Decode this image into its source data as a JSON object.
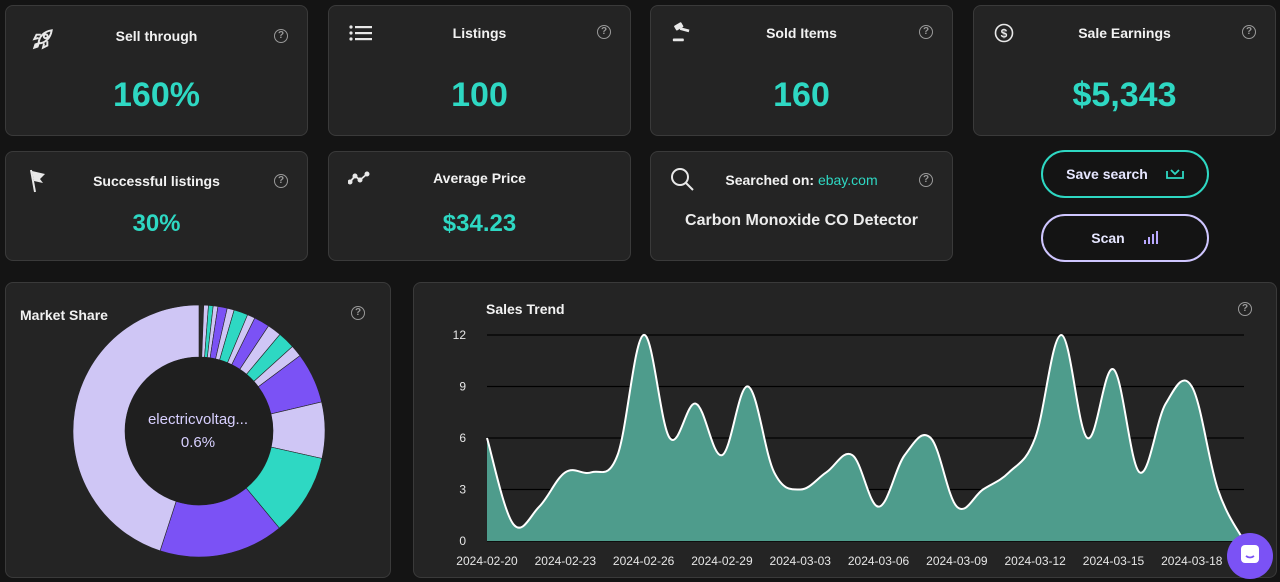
{
  "stats": {
    "sell_through": {
      "label": "Sell through",
      "value": "160%"
    },
    "listings": {
      "label": "Listings",
      "value": "100"
    },
    "sold_items": {
      "label": "Sold Items",
      "value": "160"
    },
    "sale_earnings": {
      "label": "Sale Earnings",
      "value": "$5,343"
    },
    "successful_listings": {
      "label": "Successful listings",
      "value": "30%"
    },
    "average_price": {
      "label": "Average Price",
      "value": "$34.23"
    }
  },
  "search": {
    "label": "Searched on:",
    "site": "ebay.com",
    "query": "Carbon Monoxide CO Detector"
  },
  "buttons": {
    "save": "Save search",
    "scan": "Scan"
  },
  "market_share": {
    "title": "Market Share",
    "center_name": "electricvoltag...",
    "center_value": "0.6%"
  },
  "colors": {
    "accent": "#2ed8c3",
    "purple": "#7b52f5",
    "lavender": "#cfc6f5",
    "card": "#242424"
  },
  "icons": [
    "rocket-icon",
    "list-icon",
    "gavel-icon",
    "dollar-icon",
    "flag-icon",
    "trend-icon",
    "search-icon",
    "help-icon",
    "download-icon",
    "signal-icon",
    "chat-icon"
  ],
  "chart_data": [
    {
      "type": "pie",
      "title": "Market Share",
      "slices": [
        {
          "value": 0.6,
          "color": "#2a2a2a"
        },
        {
          "value": 0.6,
          "color": "#cfc6f5"
        },
        {
          "value": 0.6,
          "color": "#2ed8c3"
        },
        {
          "value": 0.6,
          "color": "#cfc6f5"
        },
        {
          "value": 1.2,
          "color": "#7b52f5"
        },
        {
          "value": 0.9,
          "color": "#cfc6f5"
        },
        {
          "value": 1.8,
          "color": "#2ed8c3"
        },
        {
          "value": 1.0,
          "color": "#cfc6f5"
        },
        {
          "value": 2.0,
          "color": "#7b52f5"
        },
        {
          "value": 1.8,
          "color": "#cfc6f5"
        },
        {
          "value": 2.2,
          "color": "#2ed8c3"
        },
        {
          "value": 1.5,
          "color": "#cfc6f5"
        },
        {
          "value": 6.5,
          "color": "#7b52f5"
        },
        {
          "value": 7.2,
          "color": "#cfc6f5"
        },
        {
          "value": 10.5,
          "color": "#2ed8c3"
        },
        {
          "value": 16.0,
          "color": "#7b52f5"
        },
        {
          "value": 45.0,
          "color": "#cfc6f5"
        }
      ]
    },
    {
      "type": "area",
      "title": "Sales Trend",
      "ylim": [
        0,
        12
      ],
      "yticks": [
        0,
        3,
        6,
        9,
        12
      ],
      "x_tick_labels": [
        "2024-02-20",
        "2024-02-23",
        "2024-02-26",
        "2024-02-29",
        "2024-03-03",
        "2024-03-06",
        "2024-03-09",
        "2024-03-12",
        "2024-03-15",
        "2024-03-18"
      ],
      "x_tick_indices": [
        0,
        3,
        6,
        9,
        12,
        15,
        18,
        21,
        24,
        27
      ],
      "x": [
        "2024-02-20",
        "2024-02-21",
        "2024-02-22",
        "2024-02-23",
        "2024-02-24",
        "2024-02-25",
        "2024-02-26",
        "2024-02-27",
        "2024-02-28",
        "2024-02-29",
        "2024-03-01",
        "2024-03-02",
        "2024-03-03",
        "2024-03-04",
        "2024-03-05",
        "2024-03-06",
        "2024-03-07",
        "2024-03-08",
        "2024-03-09",
        "2024-03-10",
        "2024-03-11",
        "2024-03-12",
        "2024-03-13",
        "2024-03-14",
        "2024-03-15",
        "2024-03-16",
        "2024-03-17",
        "2024-03-18",
        "2024-03-19",
        "2024-03-20"
      ],
      "values": [
        6,
        1,
        2,
        4,
        4,
        5,
        12,
        6,
        8,
        5,
        9,
        4,
        3,
        4,
        5,
        2,
        5,
        6,
        2,
        3,
        4,
        6,
        12,
        6,
        10,
        4,
        8,
        9,
        3,
        0
      ],
      "fill": "#4e9c8c",
      "line": "#ffffff"
    }
  ]
}
